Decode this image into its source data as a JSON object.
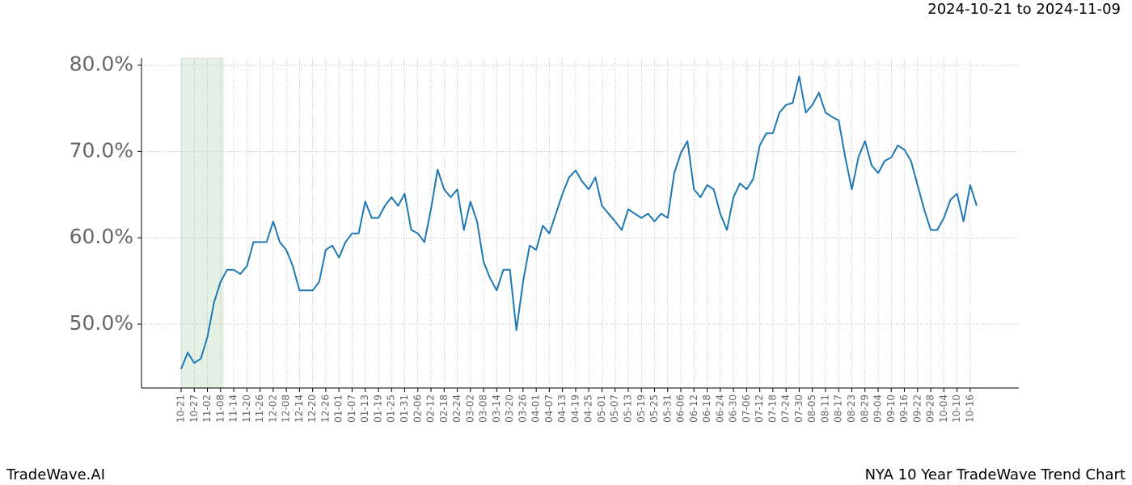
{
  "chart_data": {
    "type": "line",
    "title": "NYA 10 Year TradeWave Trend Chart",
    "subtitle": "2024-10-21 to 2024-11-09",
    "brand": "TradeWave.AI",
    "color": "#1f77b4",
    "highlight_color": "#d5e8d4",
    "grid": true,
    "categories": [
      "10-21",
      null,
      "10-27",
      null,
      "11-02",
      null,
      "11-08",
      null,
      "11-14",
      null,
      "11-20",
      null,
      "11-26",
      null,
      "12-02",
      null,
      "12-08",
      null,
      "12-14",
      null,
      "12-20",
      null,
      "12-26",
      null,
      "01-01",
      null,
      "01-07",
      null,
      "01-13",
      null,
      "01-19",
      null,
      "01-25",
      null,
      "01-31",
      null,
      "02-06",
      null,
      "02-12",
      null,
      "02-18",
      null,
      "02-24",
      null,
      "03-02",
      null,
      "03-08",
      null,
      "03-14",
      null,
      "03-20",
      null,
      "03-26",
      null,
      "04-01",
      null,
      "04-07",
      null,
      "04-13",
      null,
      "04-19",
      null,
      "04-25",
      null,
      "05-01",
      null,
      "05-07",
      null,
      "05-13",
      null,
      "05-19",
      null,
      "05-25",
      null,
      "05-31",
      null,
      "06-06",
      null,
      "06-12",
      null,
      "06-18",
      null,
      "06-24",
      null,
      "06-30",
      null,
      "07-06",
      null,
      "07-12",
      null,
      "07-18",
      null,
      "07-24",
      null,
      "07-30",
      null,
      "08-05",
      null,
      "08-11",
      null,
      "08-17",
      null,
      "08-23",
      null,
      "08-29",
      null,
      "09-04",
      null,
      "09-10",
      null,
      "09-16",
      null,
      "09-22",
      null,
      "09-28",
      null,
      "10-04",
      null,
      "10-10",
      null,
      "10-16",
      null
    ],
    "values": [
      44.8,
      46.7,
      45.5,
      46,
      48.5,
      52.5,
      54.9,
      56.3,
      56.3,
      55.8,
      56.7,
      59.5,
      59.5,
      59.5,
      61.9,
      59.5,
      58.6,
      56.7,
      53.9,
      53.9,
      53.9,
      54.9,
      58.6,
      59.1,
      57.7,
      59.5,
      60.5,
      60.5,
      64.2,
      62.3,
      62.3,
      63.7,
      64.7,
      63.7,
      65.1,
      60.9,
      60.5,
      59.5,
      63.3,
      67.9,
      65.6,
      64.7,
      65.6,
      60.9,
      64.2,
      61.9,
      57.2,
      55.3,
      53.9,
      56.3,
      56.3,
      49.3,
      54.9,
      59.1,
      58.6,
      61.4,
      60.5,
      62.8,
      65.1,
      67,
      67.8,
      66.5,
      65.6,
      67,
      63.7,
      62.8,
      61.9,
      60.9,
      63.3,
      62.8,
      62.3,
      62.8,
      61.9,
      62.8,
      62.3,
      67.5,
      69.8,
      71.2,
      65.6,
      64.7,
      66.1,
      65.6,
      62.8,
      60.9,
      64.7,
      66.3,
      65.6,
      66.8,
      70.7,
      72.1,
      72.1,
      74.5,
      75.4,
      75.6,
      78.7,
      74.5,
      75.4,
      76.8,
      74.5,
      74,
      73.6,
      69.3,
      65.6,
      69.3,
      71.2,
      68.4,
      67.5,
      68.9,
      69.3,
      70.7,
      70.2,
      68.9,
      66.1,
      63.3,
      60.9,
      60.9,
      62.3,
      64.4,
      65.1,
      61.9,
      66.1,
      63.7
    ],
    "ylim": [
      42.6,
      80.8
    ],
    "yticks": [
      {
        "value": 50,
        "label": "50.0%"
      },
      {
        "value": 60,
        "label": "60.0%"
      },
      {
        "value": 70,
        "label": "70.0%"
      },
      {
        "value": 80,
        "label": "80.0%"
      }
    ]
  }
}
